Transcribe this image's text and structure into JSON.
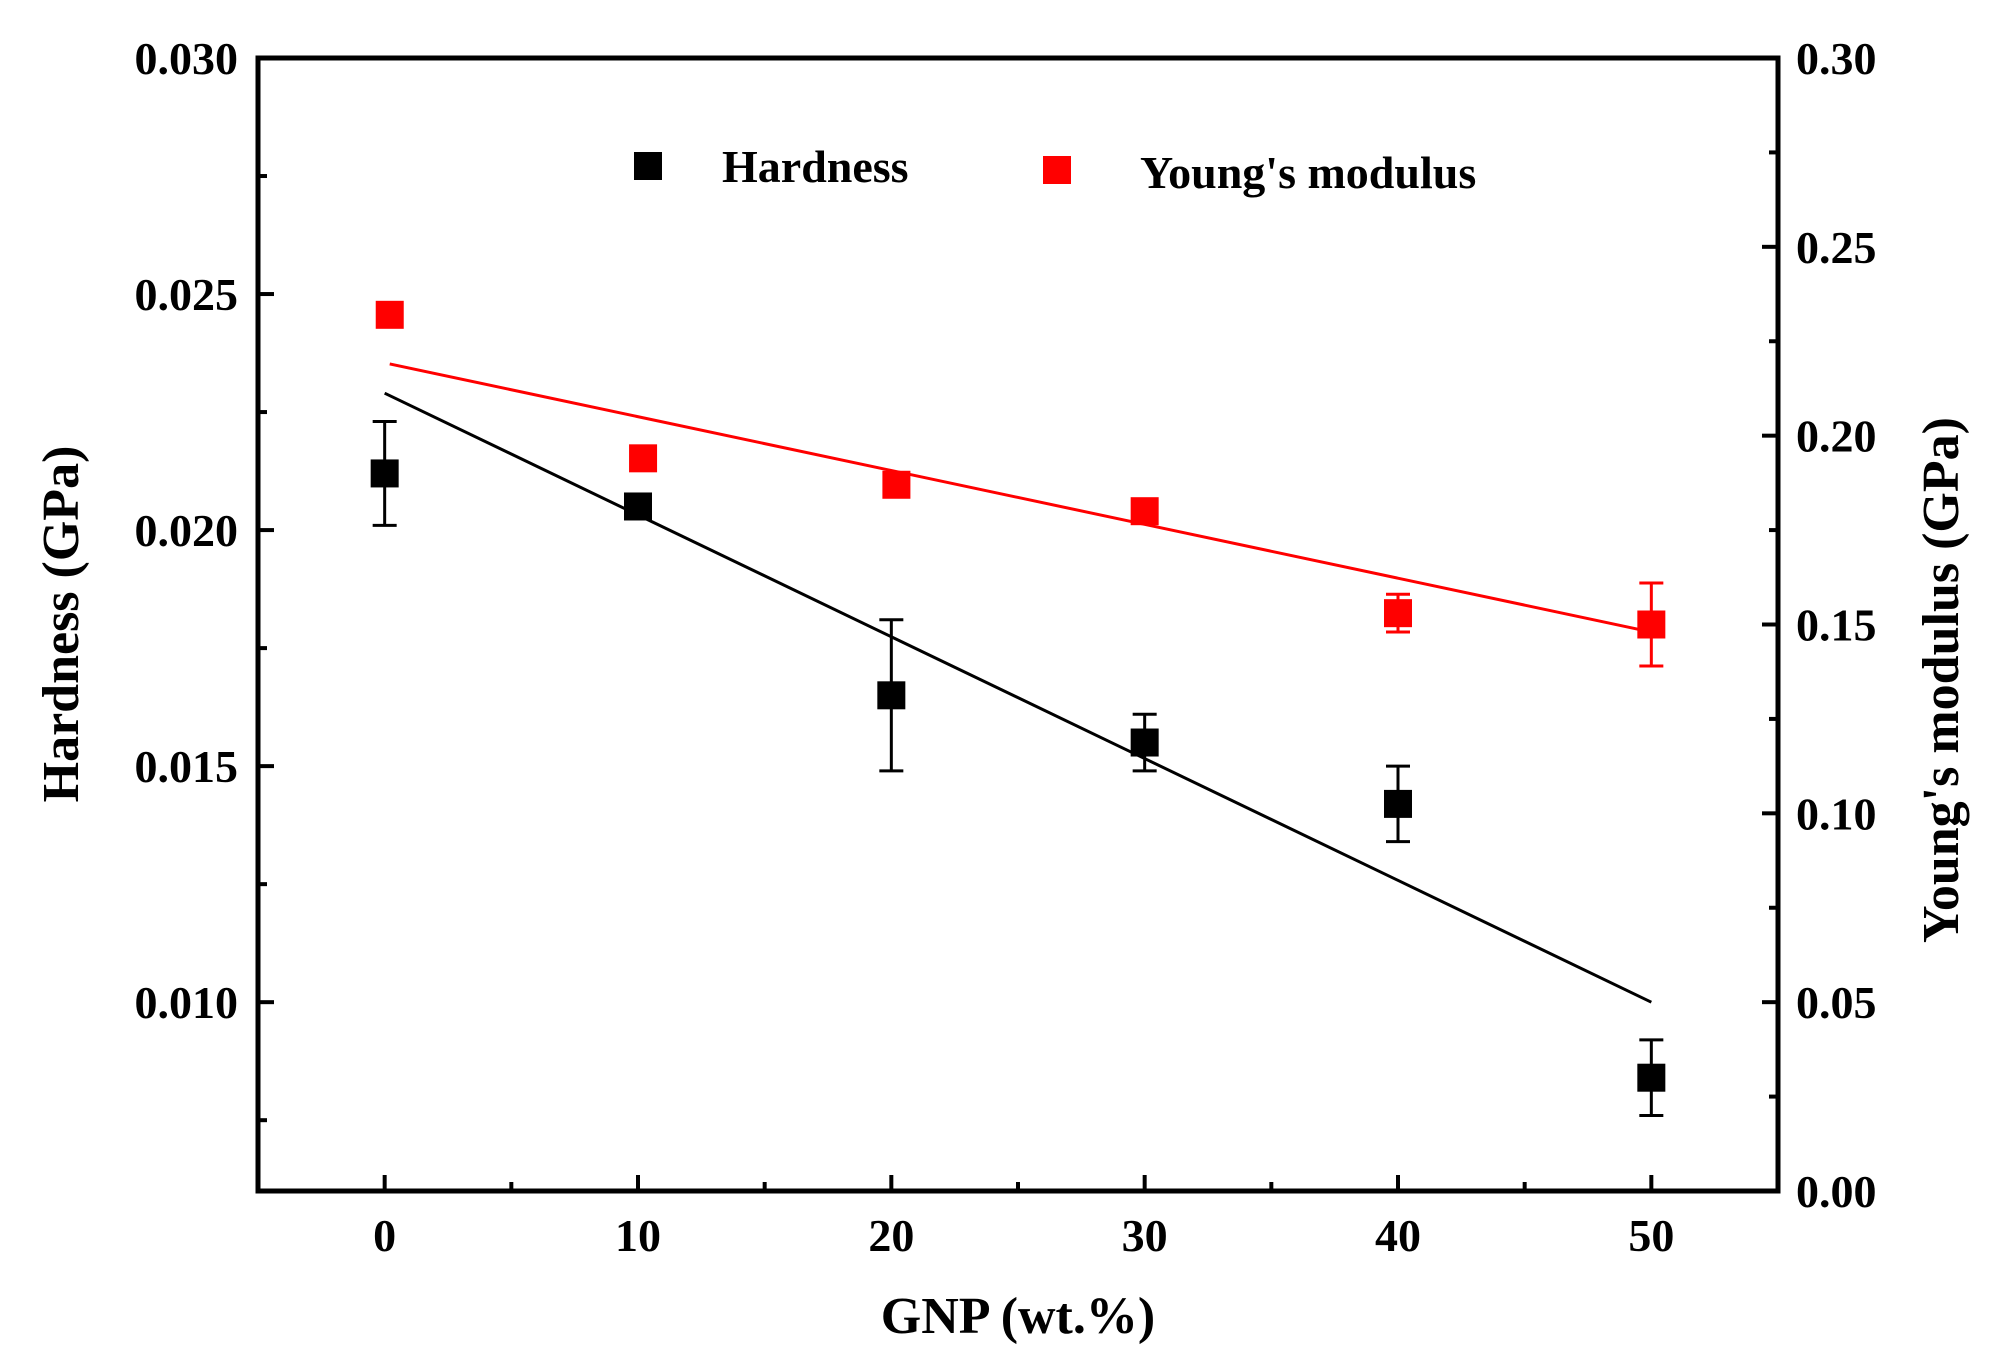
{
  "chart_data": {
    "type": "scatter",
    "xlabel": "GNP (wt.%)",
    "ylabel_left": "Hardness (GPa)",
    "ylabel_right": "Young's modulus (GPa)",
    "xlim": [
      -5,
      55
    ],
    "ylim_left": [
      0.006,
      0.03
    ],
    "ylim_right": [
      0.0,
      0.3
    ],
    "x_ticks": [
      0,
      10,
      20,
      30,
      40,
      50
    ],
    "x_tick_labels": [
      "0",
      "10",
      "20",
      "30",
      "40",
      "50"
    ],
    "y_left_ticks": [
      0.01,
      0.015,
      0.02,
      0.025,
      0.03
    ],
    "y_left_tick_labels": [
      "0.010",
      "0.015",
      "0.020",
      "0.025",
      "0.030"
    ],
    "y_right_ticks": [
      0.0,
      0.05,
      0.1,
      0.15,
      0.2,
      0.25,
      0.3
    ],
    "y_right_tick_labels": [
      "0.00",
      "0.05",
      "0.10",
      "0.15",
      "0.20",
      "0.25",
      "0.30"
    ],
    "legend_position": "top-center",
    "series": [
      {
        "name": "Hardness",
        "axis": "left",
        "color": "#000000",
        "x": [
          0,
          10,
          20,
          30,
          40,
          50
        ],
        "y": [
          0.0212,
          0.0205,
          0.0165,
          0.0155,
          0.0142,
          0.0084
        ],
        "err": [
          0.0011,
          0.0002,
          0.0016,
          0.0006,
          0.0008,
          0.0008
        ],
        "fit": {
          "x": [
            0,
            50
          ],
          "y": [
            0.0229,
            0.01
          ]
        }
      },
      {
        "name": "Young's modulus",
        "axis": "right",
        "color": "#ff0000",
        "x": [
          0.2,
          10.2,
          20.2,
          30,
          40,
          50
        ],
        "y": [
          0.232,
          0.194,
          0.187,
          0.18,
          0.153,
          0.15
        ],
        "err": [
          0.003,
          0.003,
          0.003,
          0.003,
          0.005,
          0.011
        ],
        "fit": {
          "x": [
            0.2,
            50
          ],
          "y": [
            0.219,
            0.148
          ]
        }
      }
    ]
  }
}
